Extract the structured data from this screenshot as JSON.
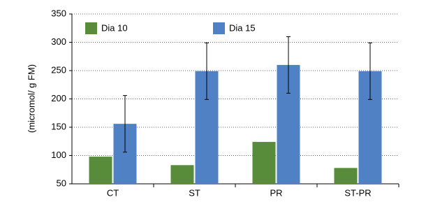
{
  "chart_data": {
    "type": "bar",
    "y_label": "(micromol/ g FM)",
    "categories": [
      "CT",
      "ST",
      "PR",
      "ST-PR"
    ],
    "series": [
      {
        "name": "Dia 10",
        "color": "#588c3a",
        "values": [
          98,
          83,
          124,
          78
        ]
      },
      {
        "name": "Dia 15",
        "color": "#4f81c4",
        "values": [
          156,
          249,
          260,
          249
        ],
        "errors": [
          50,
          50,
          50,
          50
        ]
      }
    ],
    "ylim": [
      50,
      350
    ],
    "yticks": [
      50,
      100,
      150,
      200,
      250,
      300,
      350
    ],
    "grid": true,
    "legend": "top"
  }
}
